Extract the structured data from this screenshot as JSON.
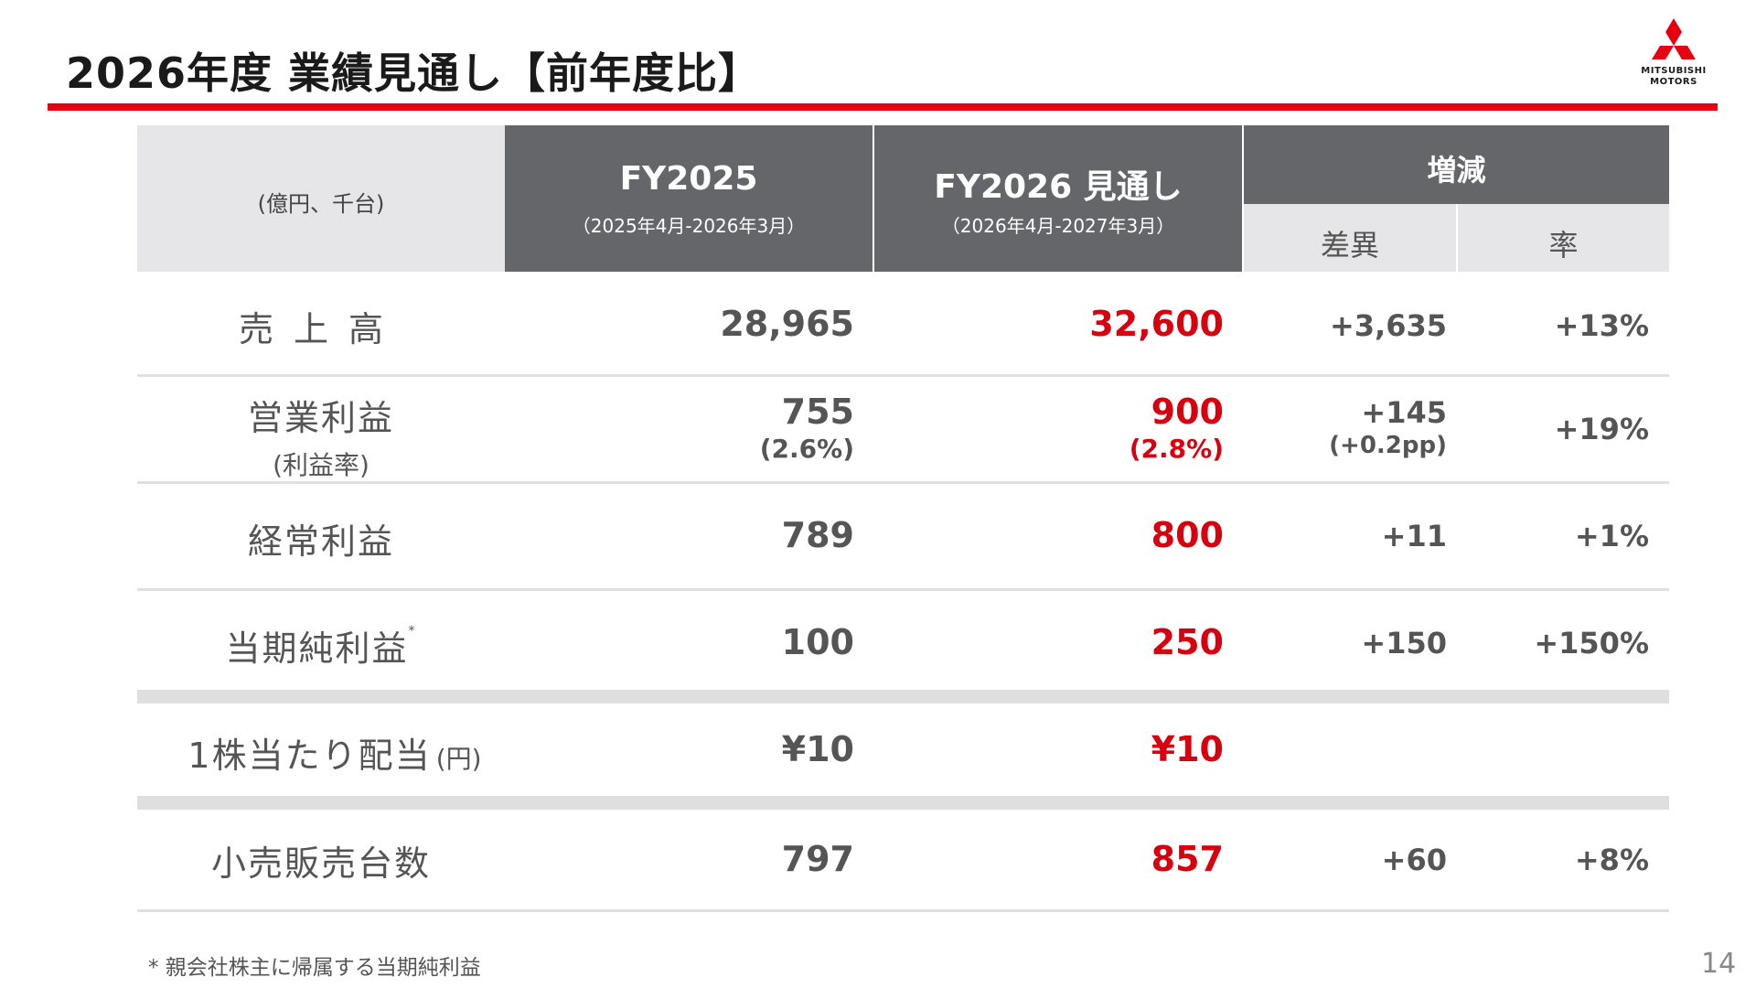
{
  "title": "2026年度 業績見通し【前年度比】",
  "logo": {
    "line1": "MITSUBISHI",
    "line2": "MOTORS"
  },
  "colors": {
    "accent": "#e60012",
    "header_dark": "#646669",
    "header_light": "#e6e6e8",
    "forecast_text": "#d7000f"
  },
  "header": {
    "unit": "(億円、千台)",
    "fy2025": {
      "label": "FY2025",
      "period": "（2025年4月-2026年3月）"
    },
    "fy2026": {
      "label": "FY2026 見通し",
      "period": "（2026年4月-2027年3月）"
    },
    "change": {
      "label": "増減",
      "diff": "差異",
      "rate": "率"
    }
  },
  "rows": [
    {
      "label": "売上高",
      "fy2025": "28,965",
      "fy2026": "32,600",
      "diff": "+3,635",
      "rate": "+13%"
    },
    {
      "label": "営業利益",
      "label_sub": "(利益率)",
      "fy2025": "755",
      "fy2025_sub": "(2.6%)",
      "fy2026": "900",
      "fy2026_sub": "(2.8%)",
      "diff": "+145",
      "diff_sub": "(+0.2pp)",
      "rate": "+19%"
    },
    {
      "label": "経常利益",
      "fy2025": "789",
      "fy2026": "800",
      "diff": "+11",
      "rate": "+1%"
    },
    {
      "label": "当期純利益",
      "label_mark": "*",
      "fy2025": "100",
      "fy2026": "250",
      "diff": "+150",
      "rate": "+150%"
    },
    {
      "label": "1株当たり配当",
      "label_unit": "(円)",
      "fy2025": "¥10",
      "fy2026": "¥10",
      "diff": "",
      "rate": ""
    },
    {
      "label": "小売販売台数",
      "fy2025": "797",
      "fy2026": "857",
      "diff": "+60",
      "rate": "+8%"
    }
  ],
  "footnote": "* 親会社株主に帰属する当期純利益",
  "page_number": "14"
}
